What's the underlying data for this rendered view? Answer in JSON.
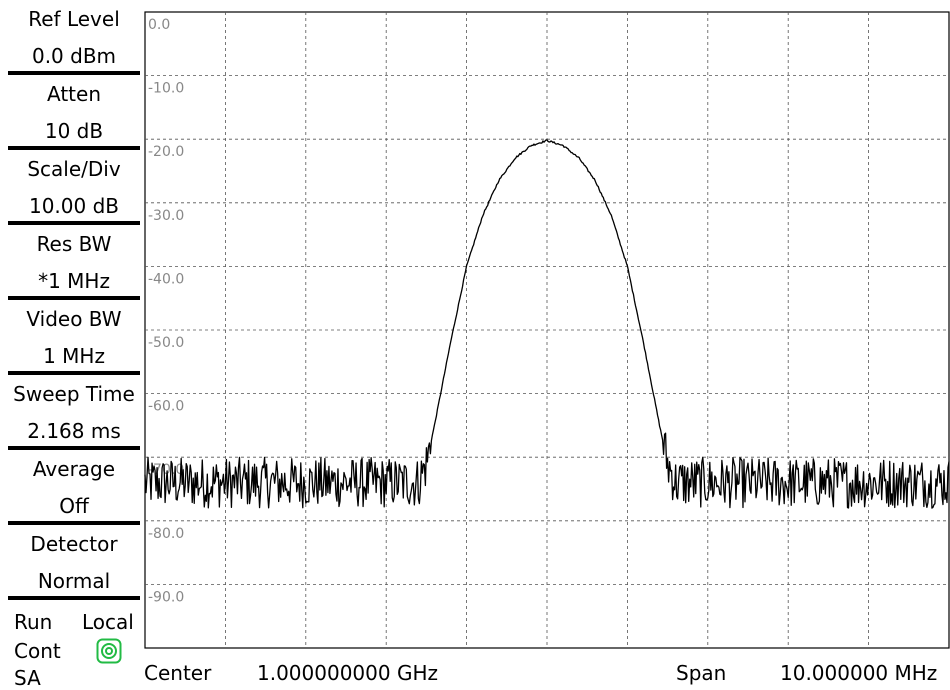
{
  "sidebar": {
    "params": [
      {
        "label": "Ref Level",
        "value": "0.0 dBm"
      },
      {
        "label": "Atten",
        "value": "10 dB"
      },
      {
        "label": "Scale/Div",
        "value": "10.00 dB"
      },
      {
        "label": "Res BW",
        "value": "*1 MHz"
      },
      {
        "label": "Video BW",
        "value": "1 MHz"
      },
      {
        "label": "Sweep Time",
        "value": "2.168 ms"
      },
      {
        "label": "Average",
        "value": "Off"
      },
      {
        "label": "Detector",
        "value": "Normal"
      }
    ],
    "status": {
      "run": "Run",
      "cont": "Cont",
      "mode": "SA",
      "local": "Local",
      "local_icon": "remote-local-icon",
      "icon_color": "#22bb44"
    }
  },
  "footer": {
    "center_label": "Center",
    "center_value": "1.000000000 GHz",
    "span_label": "Span",
    "span_value": "10.000000 MHz"
  },
  "chart_data": {
    "type": "line",
    "y_tick_labels": [
      "0.0",
      "-10.0",
      "-20.0",
      "-30.0",
      "-40.0",
      "-50.0",
      "-60.0",
      "-70.0",
      "-80.0",
      "-90.0"
    ],
    "ylim": [
      -100,
      0
    ],
    "xlim": [
      995,
      1005
    ],
    "x_unit": "MHz",
    "y_unit": "dBm",
    "vertical_divisions": 10,
    "grid": true,
    "grid_style": "dashed",
    "trace_color": "#000000",
    "tick_label_color": "#888888",
    "series": [
      {
        "noise_floor": -74,
        "noise_spread": 4,
        "points": [
          [
            995.0,
            -74
          ],
          [
            998.4,
            -74
          ],
          [
            998.5,
            -71
          ],
          [
            998.6,
            -65
          ],
          [
            998.8,
            -52
          ],
          [
            999.0,
            -40
          ],
          [
            999.2,
            -32
          ],
          [
            999.4,
            -26.5
          ],
          [
            999.6,
            -23
          ],
          [
            999.8,
            -21
          ],
          [
            1000.0,
            -20.2
          ],
          [
            1000.2,
            -21
          ],
          [
            1000.4,
            -23
          ],
          [
            1000.6,
            -26.5
          ],
          [
            1000.8,
            -32
          ],
          [
            1001.0,
            -40
          ],
          [
            1001.2,
            -52
          ],
          [
            1001.4,
            -65
          ],
          [
            1001.5,
            -71
          ],
          [
            1001.6,
            -74
          ],
          [
            1005.0,
            -74
          ]
        ]
      }
    ]
  }
}
